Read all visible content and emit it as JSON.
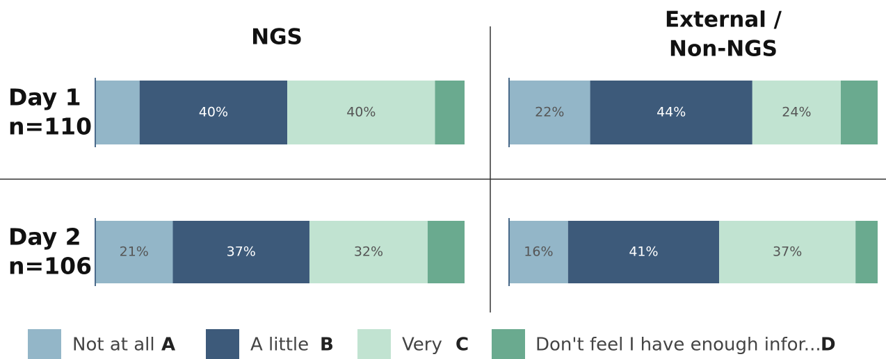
{
  "chart_data": {
    "type": "bar",
    "stacked": true,
    "orientation": "horizontal",
    "xlim": [
      0,
      100
    ],
    "columns": [
      [
        "NGS"
      ],
      [
        "External /",
        "Non-NGS"
      ]
    ],
    "rows": [
      [
        "Day 1",
        "n=110"
      ],
      [
        "Day 2",
        "n=106"
      ]
    ],
    "series": [
      {
        "name": "Not at all",
        "key": "A",
        "color": "#93b6c8"
      },
      {
        "name": "A little",
        "key": "B",
        "color": "#3d5a7a"
      },
      {
        "name": "Very",
        "key": "C",
        "color": "#c1e3d1"
      },
      {
        "name": "Don't feel I have enough infor...",
        "key": "D",
        "color": "#6aaa8f"
      }
    ],
    "panels": [
      {
        "row": 0,
        "col": 0,
        "values": [
          12,
          40,
          40,
          8
        ],
        "value_labels": [
          null,
          "40%",
          "40%",
          null
        ]
      },
      {
        "row": 0,
        "col": 1,
        "values": [
          22,
          44,
          24,
          10
        ],
        "value_labels": [
          "22%",
          "44%",
          "24%",
          null
        ]
      },
      {
        "row": 1,
        "col": 0,
        "values": [
          21,
          37,
          32,
          10
        ],
        "value_labels": [
          "21%",
          "37%",
          "32%",
          null
        ]
      },
      {
        "row": 1,
        "col": 1,
        "values": [
          16,
          41,
          37,
          6
        ],
        "value_labels": [
          "16%",
          "41%",
          "37%",
          null
        ]
      }
    ]
  }
}
